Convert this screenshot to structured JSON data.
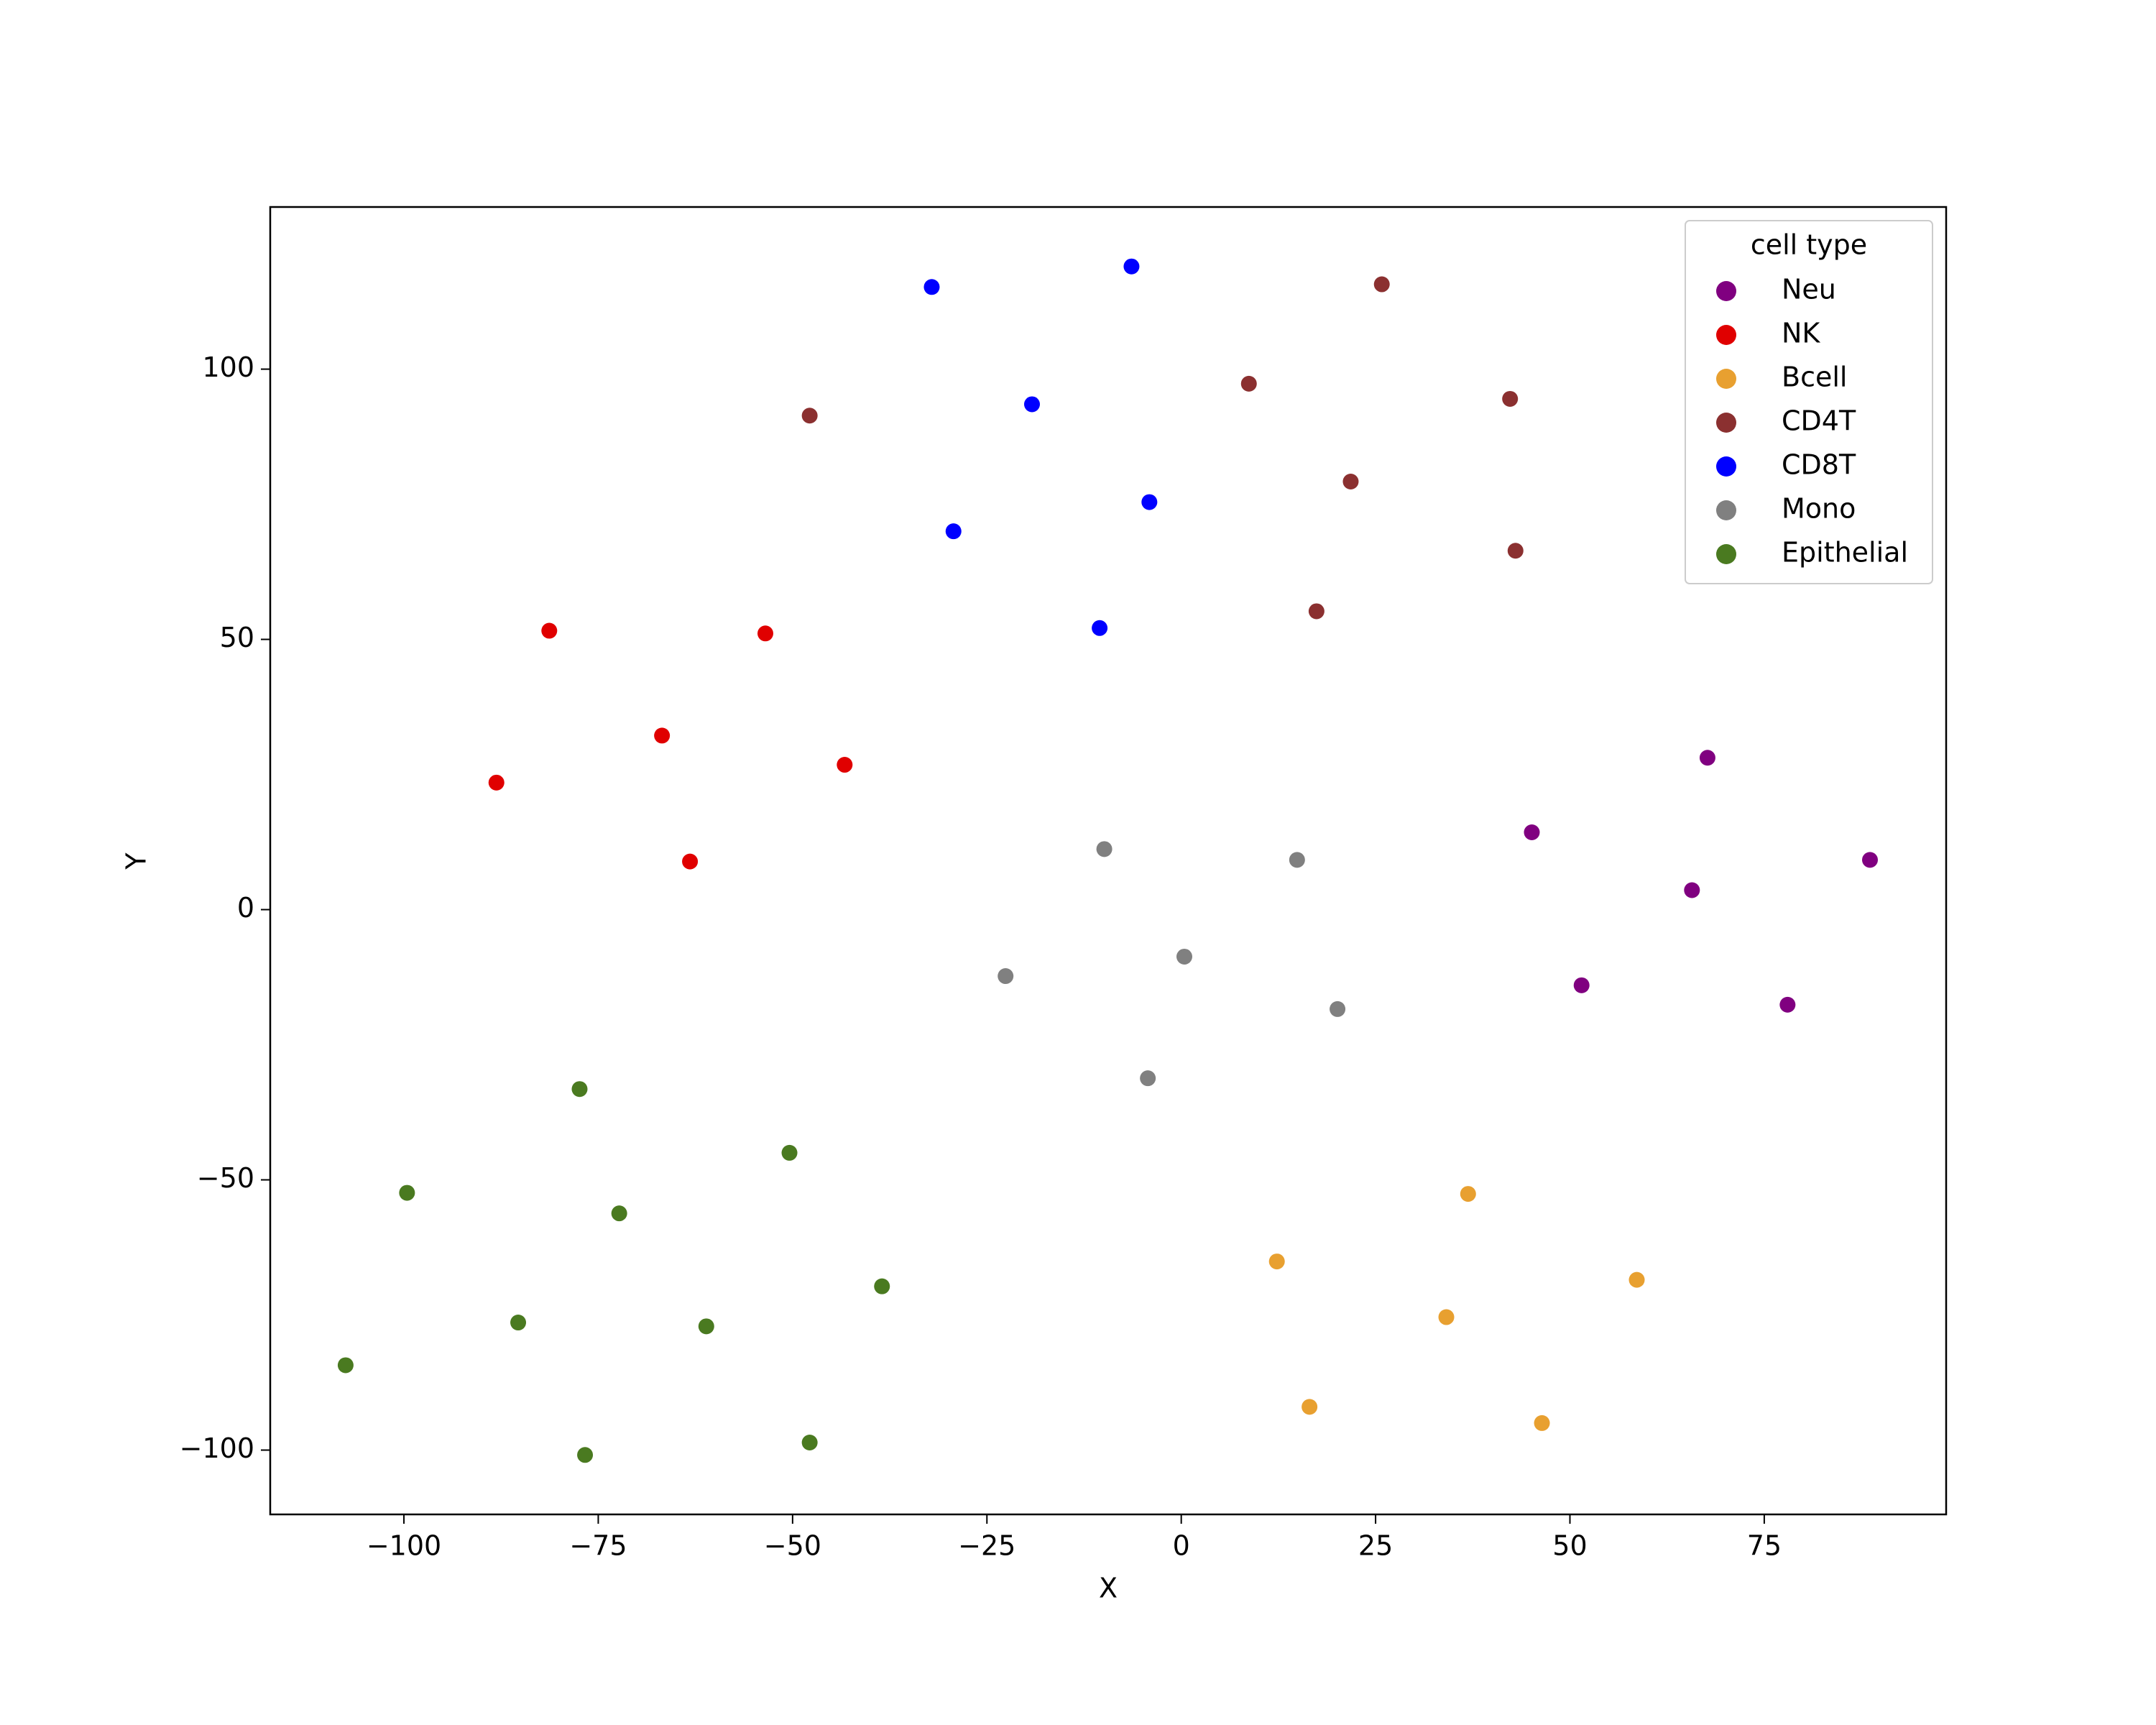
{
  "chart_data": {
    "type": "scatter",
    "x_label": "X",
    "y_label": "Y",
    "legend_title": "cell type",
    "legend_position": "upper right",
    "xlim": [
      -117.2,
      98.4
    ],
    "ylim": [
      -111.9,
      130.0
    ],
    "xticks": [
      {
        "value": -100,
        "label": "−100"
      },
      {
        "value": -75,
        "label": "−75"
      },
      {
        "value": -50,
        "label": "−50"
      },
      {
        "value": -25,
        "label": "−25"
      },
      0,
      25,
      50,
      75
    ],
    "yticks": [
      {
        "value": -100,
        "label": "−100"
      },
      {
        "value": -50,
        "label": "−50"
      },
      0,
      50,
      100
    ],
    "series": [
      {
        "name": "Neu",
        "color": "#800080",
        "x": [
          67.7,
          45.1,
          65.7,
          88.6,
          51.5,
          78.0
        ],
        "values": [
          28.1,
          14.3,
          3.6,
          9.2,
          -14.0,
          -17.6
        ]
      },
      {
        "name": "NK",
        "color": "#e00000",
        "x": [
          -81.3,
          -53.5,
          -66.8,
          -43.3,
          -88.1,
          -63.2
        ],
        "values": [
          51.6,
          51.1,
          32.2,
          26.8,
          23.5,
          8.9
        ]
      },
      {
        "name": "Bcell",
        "color": "#e8a030",
        "x": [
          36.9,
          12.3,
          58.6,
          34.1,
          16.5,
          46.4
        ],
        "values": [
          -52.6,
          -65.1,
          -68.5,
          -75.4,
          -92.0,
          -95.0
        ]
      },
      {
        "name": "CD4T",
        "color": "#8b3030",
        "x": [
          25.8,
          8.7,
          -47.8,
          42.3,
          21.8,
          43.0,
          17.4
        ],
        "values": [
          115.7,
          97.3,
          91.4,
          94.5,
          79.2,
          66.4,
          55.2
        ]
      },
      {
        "name": "CD8T",
        "color": "#0000ff",
        "x": [
          -6.4,
          -32.1,
          -19.2,
          -4.1,
          -29.3,
          -10.5
        ],
        "values": [
          119.0,
          115.2,
          93.5,
          75.4,
          70.0,
          52.1
        ]
      },
      {
        "name": "Mono",
        "color": "#808080",
        "x": [
          -9.9,
          14.9,
          0.4,
          -22.6,
          20.1,
          -4.3
        ],
        "values": [
          11.2,
          9.2,
          -8.7,
          -12.3,
          -18.4,
          -31.2
        ]
      },
      {
        "name": "Epithelial",
        "color": "#4a7a20",
        "x": [
          -77.4,
          -50.4,
          -99.6,
          -72.3,
          -38.5,
          -85.3,
          -61.1,
          -107.5,
          -47.8,
          -76.7
        ],
        "values": [
          -33.2,
          -45.0,
          -52.4,
          -56.2,
          -69.7,
          -76.4,
          -77.1,
          -84.3,
          -98.6,
          -100.9
        ]
      }
    ]
  }
}
